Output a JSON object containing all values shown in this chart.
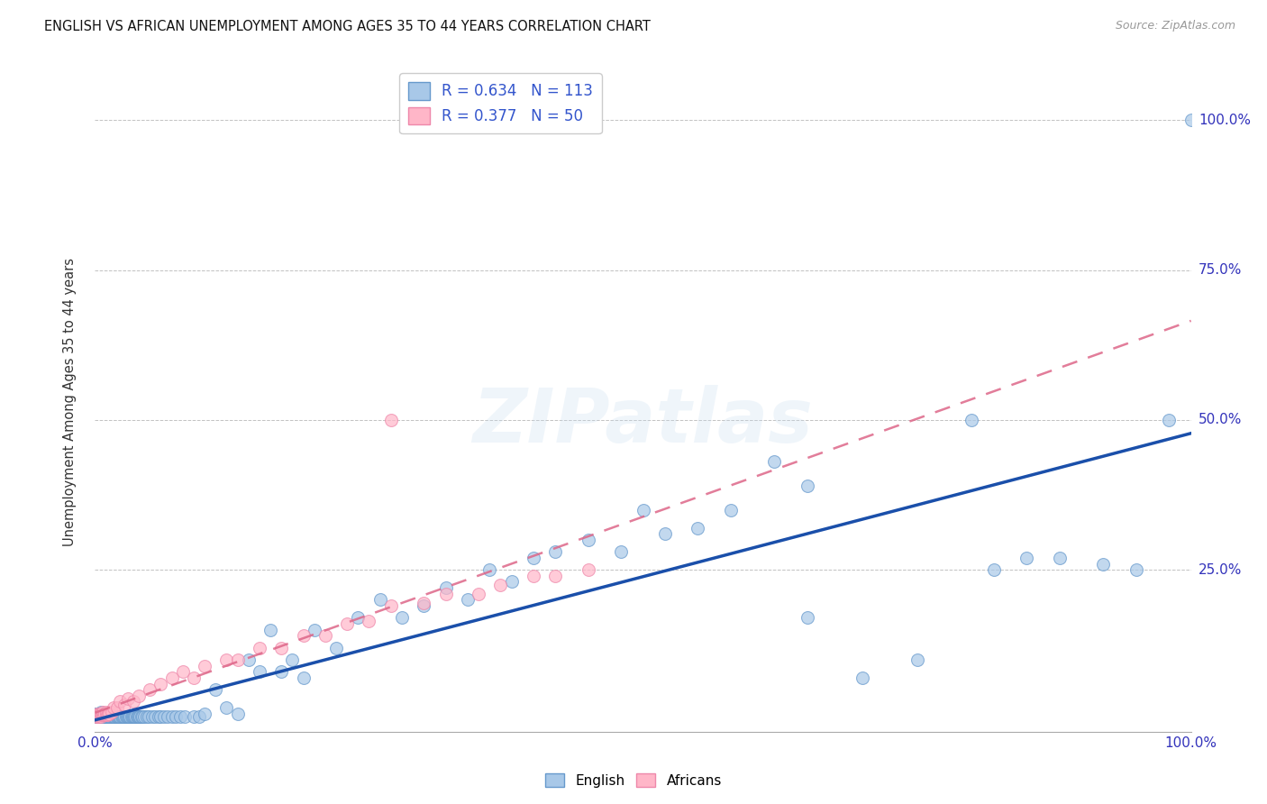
{
  "title": "ENGLISH VS AFRICAN UNEMPLOYMENT AMONG AGES 35 TO 44 YEARS CORRELATION CHART",
  "source": "Source: ZipAtlas.com",
  "ylabel": "Unemployment Among Ages 35 to 44 years",
  "legend_english_label": "English",
  "legend_african_label": "Africans",
  "english_scatter_fc": "#a8c8e8",
  "english_scatter_ec": "#6699cc",
  "african_scatter_fc": "#ffb6c8",
  "african_scatter_ec": "#ee88aa",
  "english_line_color": "#1a4faa",
  "african_line_color": "#dd6688",
  "watermark_text": "ZIPatlas",
  "r_english": "0.634",
  "n_english": "113",
  "r_african": "0.377",
  "n_african": "50",
  "axis_tick_color": "#3333bb",
  "title_color": "#111111",
  "background_color": "#ffffff",
  "grid_color": "#bbbbbb",
  "legend_text_color": "#111111",
  "legend_val_color": "#3355cc"
}
